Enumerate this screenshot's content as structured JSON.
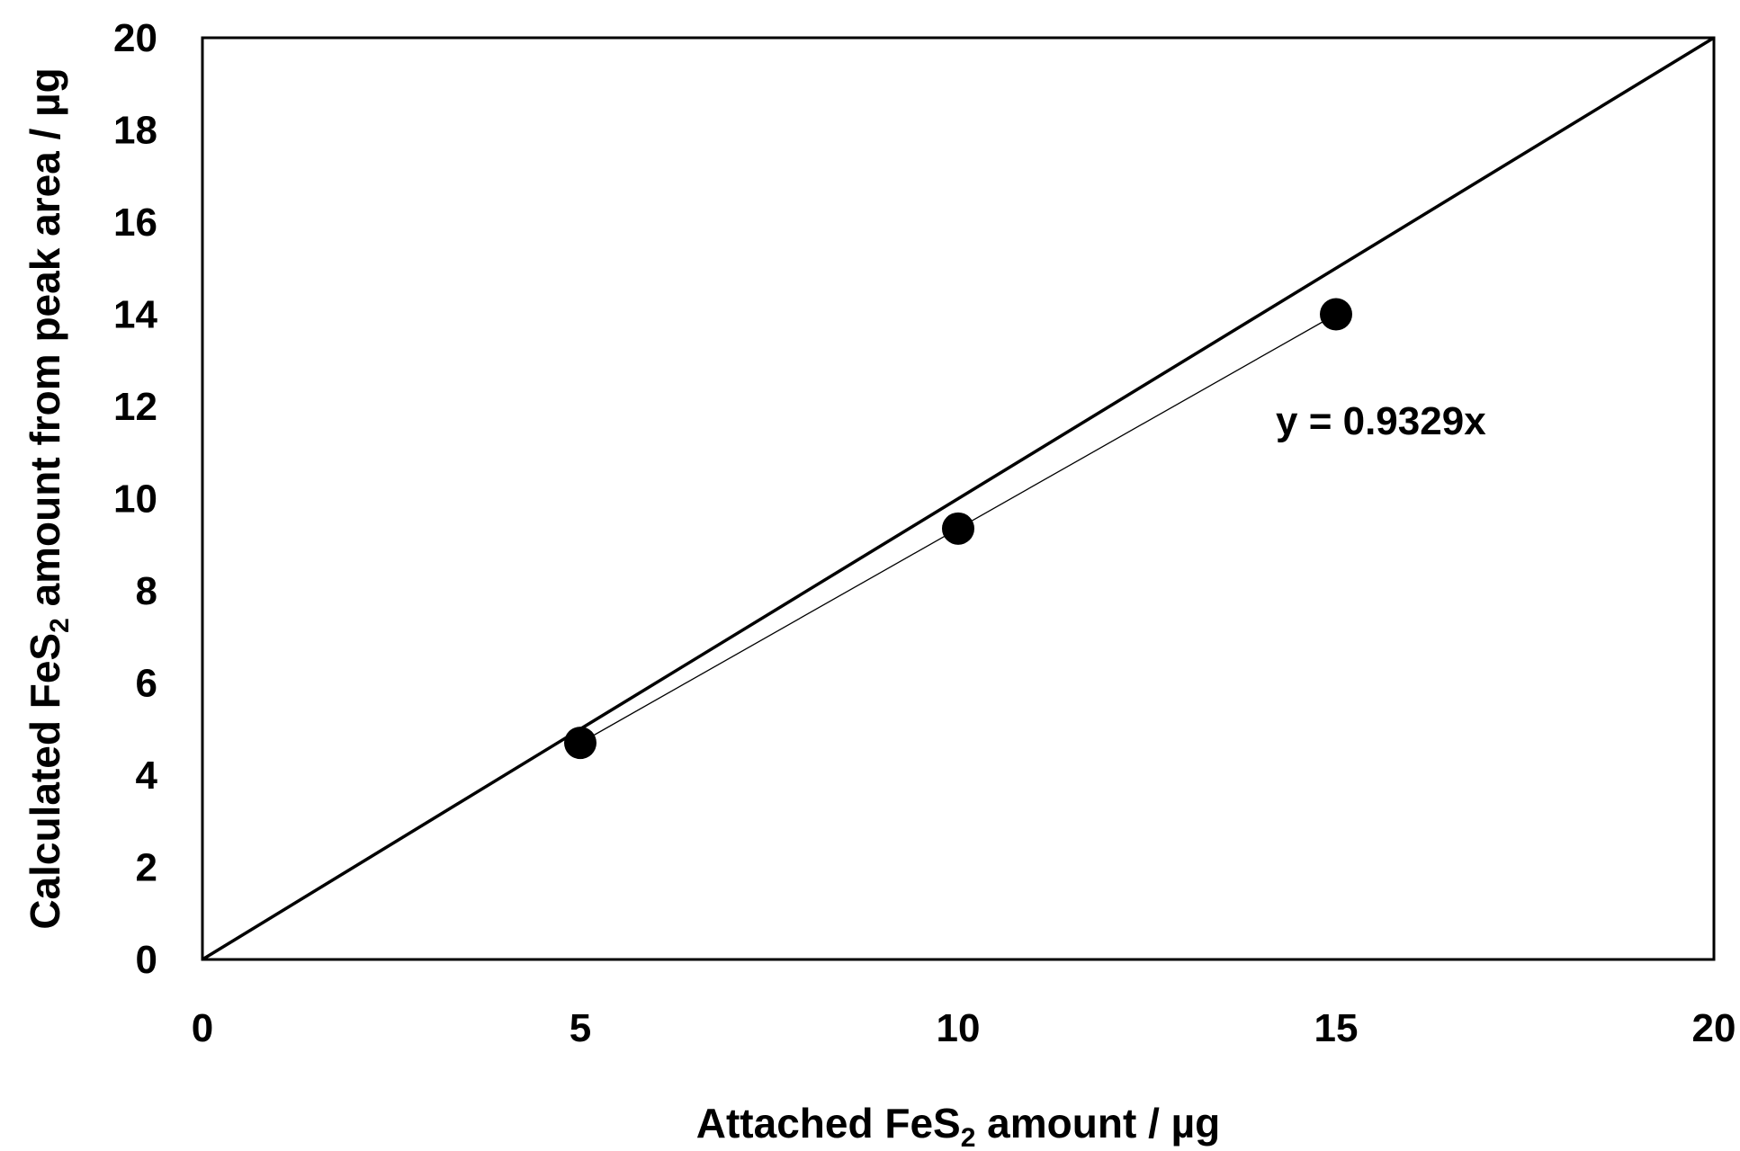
{
  "chart_data": {
    "type": "scatter",
    "xlabel": {
      "before": "Attached FeS",
      "sub": "2",
      "after": " amount / µg"
    },
    "ylabel": {
      "before": "Calculated FeS",
      "sub": "2",
      "after": " amount from peak area / µg"
    },
    "xlim": [
      0,
      20
    ],
    "ylim": [
      0,
      20
    ],
    "xticks": [
      0,
      5,
      10,
      15,
      20
    ],
    "yticks": [
      0,
      2,
      4,
      6,
      8,
      10,
      12,
      14,
      16,
      18,
      20
    ],
    "grid": false,
    "legend": "none",
    "series": [
      {
        "points": [
          {
            "x": 5,
            "y": 4.7
          },
          {
            "x": 10,
            "y": 9.35
          },
          {
            "x": 15,
            "y": 14.0
          }
        ],
        "marker": "circle",
        "color": "#000000"
      }
    ],
    "reference_line": {
      "slope": 1,
      "intercept": 0,
      "x_range": [
        0,
        20
      ],
      "color": "#000000"
    },
    "trendline": {
      "slope": 0.9329,
      "x_range": [
        5,
        15
      ],
      "color": "#000000"
    },
    "annotation": "y = 0.9329x"
  }
}
